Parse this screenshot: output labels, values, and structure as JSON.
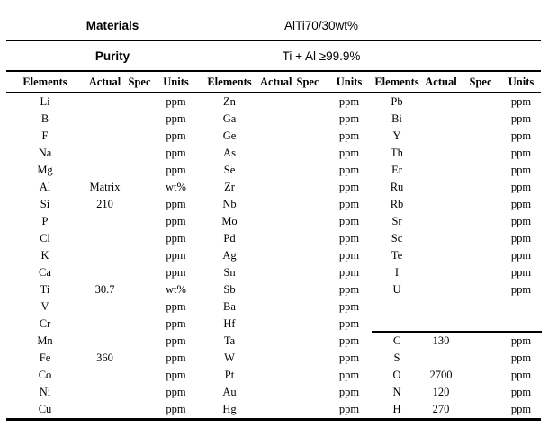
{
  "title_rows": {
    "materials_label": "Materials",
    "materials_value": "AlTi70/30wt%",
    "purity_label": "Purity",
    "purity_value": "Ti + Al ≥99.9%"
  },
  "column_headers": [
    "Elements",
    "Actual",
    "Spec",
    "Units",
    "Elements",
    "Actual",
    "Spec",
    "Units",
    "Elements",
    "Actual",
    "Spec",
    "Units"
  ],
  "groups": [
    {
      "name": "group-1",
      "rows": [
        {
          "element": "Li",
          "actual": "",
          "spec": "",
          "units": "ppm"
        },
        {
          "element": "B",
          "actual": "",
          "spec": "",
          "units": "ppm"
        },
        {
          "element": "F",
          "actual": "",
          "spec": "",
          "units": "ppm"
        },
        {
          "element": "Na",
          "actual": "",
          "spec": "",
          "units": "ppm"
        },
        {
          "element": "Mg",
          "actual": "",
          "spec": "",
          "units": "ppm"
        },
        {
          "element": "Al",
          "actual": "Matrix",
          "spec": "",
          "units": "wt%"
        },
        {
          "element": "Si",
          "actual": "210",
          "spec": "",
          "units": "ppm"
        },
        {
          "element": "P",
          "actual": "",
          "spec": "",
          "units": "ppm"
        },
        {
          "element": "Cl",
          "actual": "",
          "spec": "",
          "units": "ppm"
        },
        {
          "element": "K",
          "actual": "",
          "spec": "",
          "units": "ppm"
        },
        {
          "element": "Ca",
          "actual": "",
          "spec": "",
          "units": "ppm"
        },
        {
          "element": "Ti",
          "actual": "30.7",
          "spec": "",
          "units": "wt%"
        },
        {
          "element": "V",
          "actual": "",
          "spec": "",
          "units": "ppm"
        },
        {
          "element": "Cr",
          "actual": "",
          "spec": "",
          "units": "ppm"
        },
        {
          "element": "Mn",
          "actual": "",
          "spec": "",
          "units": "ppm"
        },
        {
          "element": "Fe",
          "actual": "360",
          "spec": "",
          "units": "ppm"
        },
        {
          "element": "Co",
          "actual": "",
          "spec": "",
          "units": "ppm"
        },
        {
          "element": "Ni",
          "actual": "",
          "spec": "",
          "units": "ppm"
        },
        {
          "element": "Cu",
          "actual": "",
          "spec": "",
          "units": "ppm"
        }
      ]
    },
    {
      "name": "group-2",
      "rows": [
        {
          "element": "Zn",
          "actual": "",
          "spec": "",
          "units": "ppm"
        },
        {
          "element": "Ga",
          "actual": "",
          "spec": "",
          "units": "ppm"
        },
        {
          "element": "Ge",
          "actual": "",
          "spec": "",
          "units": "ppm"
        },
        {
          "element": "As",
          "actual": "",
          "spec": "",
          "units": "ppm"
        },
        {
          "element": "Se",
          "actual": "",
          "spec": "",
          "units": "ppm"
        },
        {
          "element": "Zr",
          "actual": "",
          "spec": "",
          "units": "ppm"
        },
        {
          "element": "Nb",
          "actual": "",
          "spec": "",
          "units": "ppm"
        },
        {
          "element": "Mo",
          "actual": "",
          "spec": "",
          "units": "ppm"
        },
        {
          "element": "Pd",
          "actual": "",
          "spec": "",
          "units": "ppm"
        },
        {
          "element": "Ag",
          "actual": "",
          "spec": "",
          "units": "ppm"
        },
        {
          "element": "Sn",
          "actual": "",
          "spec": "",
          "units": "ppm"
        },
        {
          "element": "Sb",
          "actual": "",
          "spec": "",
          "units": "ppm"
        },
        {
          "element": "Ba",
          "actual": "",
          "spec": "",
          "units": "ppm"
        },
        {
          "element": "Hf",
          "actual": "",
          "spec": "",
          "units": "ppm"
        },
        {
          "element": "Ta",
          "actual": "",
          "spec": "",
          "units": "ppm"
        },
        {
          "element": "W",
          "actual": "",
          "spec": "",
          "units": "ppm"
        },
        {
          "element": "Pt",
          "actual": "",
          "spec": "",
          "units": "ppm"
        },
        {
          "element": "Au",
          "actual": "",
          "spec": "",
          "units": "ppm"
        },
        {
          "element": "Hg",
          "actual": "",
          "spec": "",
          "units": "ppm"
        }
      ]
    },
    {
      "name": "group-3",
      "rows": [
        {
          "element": "Pb",
          "actual": "",
          "spec": "",
          "units": "ppm"
        },
        {
          "element": "Bi",
          "actual": "",
          "spec": "",
          "units": "ppm"
        },
        {
          "element": "Y",
          "actual": "",
          "spec": "",
          "units": "ppm"
        },
        {
          "element": "Th",
          "actual": "",
          "spec": "",
          "units": "ppm"
        },
        {
          "element": "Er",
          "actual": "",
          "spec": "",
          "units": "ppm"
        },
        {
          "element": "Ru",
          "actual": "",
          "spec": "",
          "units": "ppm"
        },
        {
          "element": "Rb",
          "actual": "",
          "spec": "",
          "units": "ppm"
        },
        {
          "element": "Sr",
          "actual": "",
          "spec": "",
          "units": "ppm"
        },
        {
          "element": "Sc",
          "actual": "",
          "spec": "",
          "units": "ppm"
        },
        {
          "element": "Te",
          "actual": "",
          "spec": "",
          "units": "ppm"
        },
        {
          "element": "I",
          "actual": "",
          "spec": "",
          "units": "ppm"
        },
        {
          "element": "U",
          "actual": "",
          "spec": "",
          "units": "ppm"
        },
        {
          "element": "",
          "actual": "",
          "spec": "",
          "units": ""
        },
        {
          "element": "",
          "actual": "",
          "spec": "",
          "units": ""
        },
        {
          "element": "C",
          "actual": "130",
          "spec": "",
          "units": "ppm"
        },
        {
          "element": "S",
          "actual": "",
          "spec": "",
          "units": "ppm"
        },
        {
          "element": "O",
          "actual": "2700",
          "spec": "",
          "units": "ppm"
        },
        {
          "element": "N",
          "actual": "120",
          "spec": "",
          "units": "ppm"
        },
        {
          "element": "H",
          "actual": "270",
          "spec": "",
          "units": "ppm"
        }
      ]
    }
  ],
  "divider_note": "partial rule above C/S/O/N/H sub-table in third group",
  "colors": {
    "background": "#ffffff",
    "text": "#000000",
    "rule": "#000000"
  }
}
